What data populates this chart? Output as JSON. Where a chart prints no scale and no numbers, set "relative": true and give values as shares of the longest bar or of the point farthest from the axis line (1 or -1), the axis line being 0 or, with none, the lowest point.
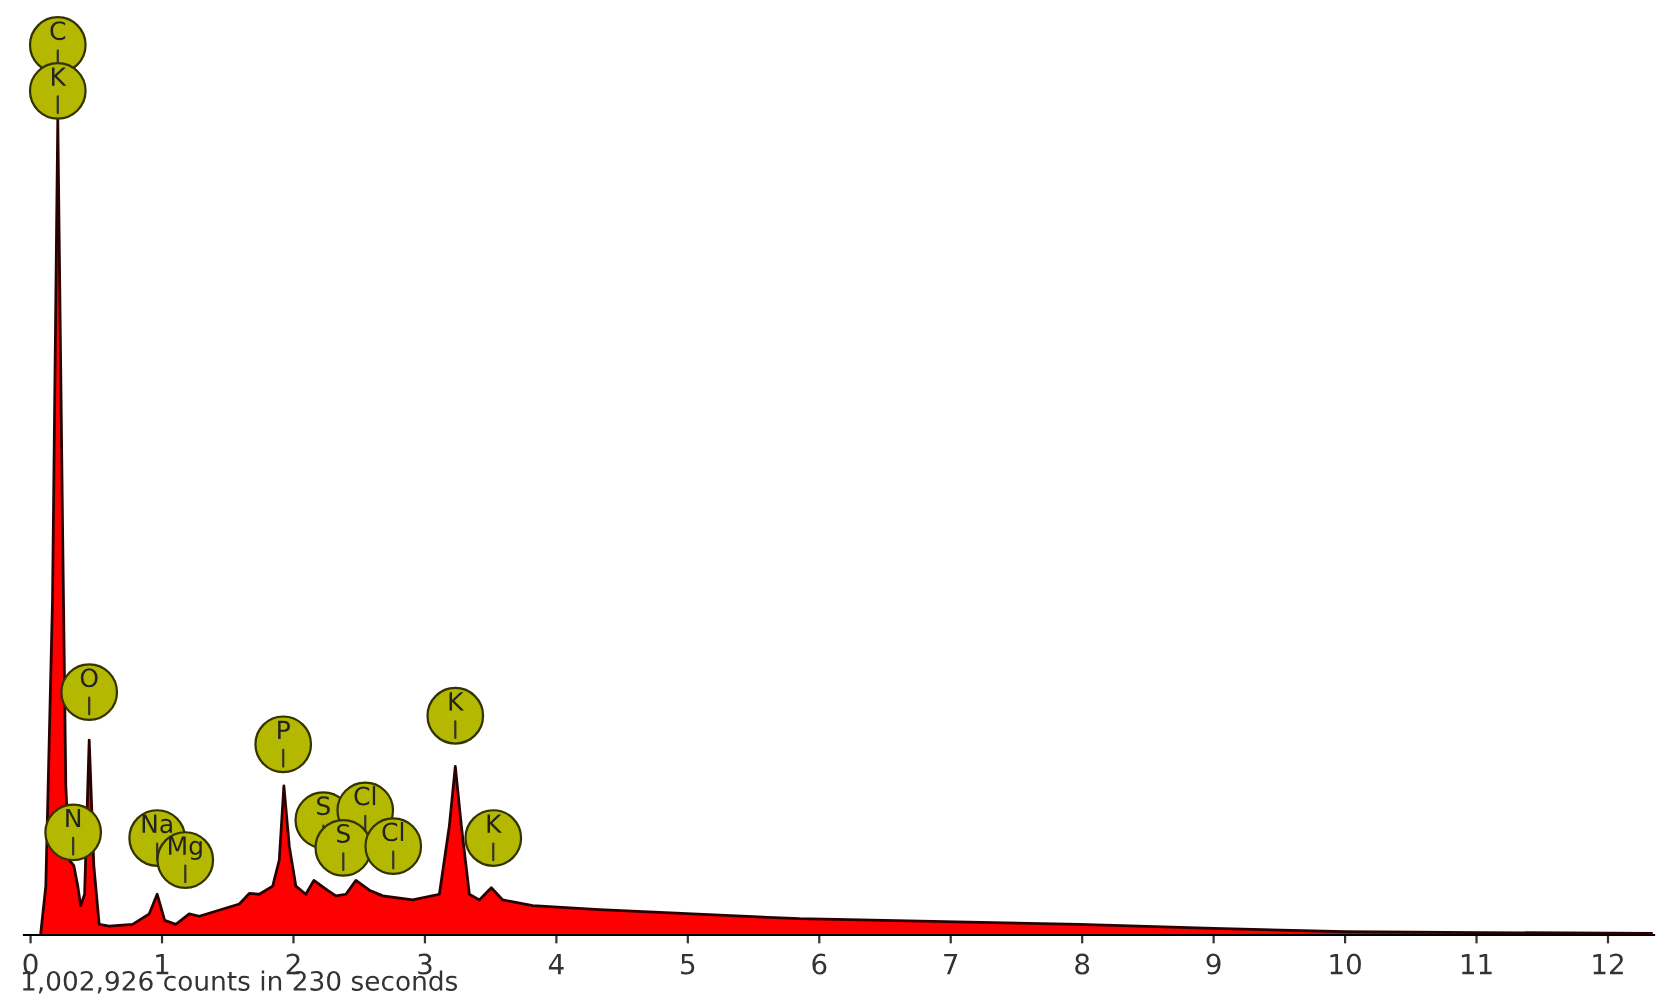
{
  "chart_data": {
    "type": "area",
    "relative": true,
    "color": "#ff0000",
    "x": [
      0.076,
      0.116,
      0.167,
      0.207,
      0.244,
      0.268,
      0.294,
      0.329,
      0.359,
      0.381,
      0.411,
      0.446,
      0.481,
      0.522,
      0.598,
      0.776,
      0.903,
      0.963,
      1.02,
      1.105,
      1.207,
      1.283,
      1.588,
      1.664,
      1.74,
      1.842,
      1.892,
      1.927,
      1.968,
      2.018,
      2.094,
      2.155,
      2.207,
      2.257,
      2.323,
      2.399,
      2.475,
      2.527,
      2.577,
      2.679,
      2.907,
      3.11,
      3.186,
      3.231,
      3.277,
      3.338,
      3.414,
      3.505,
      3.592,
      3.82,
      4.327,
      5.85,
      7.98,
      9.0,
      10.0,
      11.03,
      12.33
    ],
    "values": [
      0.0,
      0.06,
      0.411,
      1.0,
      0.492,
      0.183,
      0.092,
      0.085,
      0.06,
      0.036,
      0.05,
      0.239,
      0.085,
      0.013,
      0.011,
      0.013,
      0.026,
      0.05,
      0.018,
      0.013,
      0.026,
      0.023,
      0.038,
      0.051,
      0.05,
      0.06,
      0.092,
      0.183,
      0.109,
      0.06,
      0.05,
      0.067,
      null,
      0.055,
      0.048,
      0.05,
      0.067,
      null,
      0.055,
      0.048,
      0.043,
      0.05,
      0.134,
      0.207,
      0.134,
      0.05,
      0.043,
      0.058,
      0.043,
      0.036,
      0.031,
      0.02,
      0.013,
      0.008,
      0.004,
      0.003,
      0.002
    ],
    "xlim": [
      -0.05,
      12.35
    ],
    "xticks": [
      0,
      1,
      2,
      3,
      4,
      5,
      6,
      7,
      8,
      9,
      10,
      11,
      12
    ],
    "grid": false,
    "annotations": [
      "C",
      {
        "text": "K",
        "x": 0.207,
        "y": 1.0
      },
      {
        "text": "O",
        "x": 0.446,
        "y": 0.298
      },
      {
        "text": "N",
        "x": 0.324,
        "y": 0.126
      },
      {
        "text": "Na",
        "x": 0.963,
        "y": 0.119
      },
      {
        "text": "Mg",
        "x": 1.177,
        "y": 0.092
      },
      {
        "text": "P",
        "x": 1.922,
        "y": 0.234
      },
      {
        "text": "S",
        "x": 2.227,
        "y": 0.141
      },
      {
        "text": "Cl",
        "x": 2.546,
        "y": 0.153
      },
      {
        "text": "S",
        "x": 2.379,
        "y": 0.107
      },
      {
        "text": "Cl",
        "x": 2.759,
        "y": 0.109
      },
      {
        "text": "K",
        "x": 3.231,
        "y": 0.269
      },
      {
        "text": "K",
        "x": 3.52,
        "y": 0.119
      },
      "1,002,926 counts in 230 seconds"
    ]
  }
}
